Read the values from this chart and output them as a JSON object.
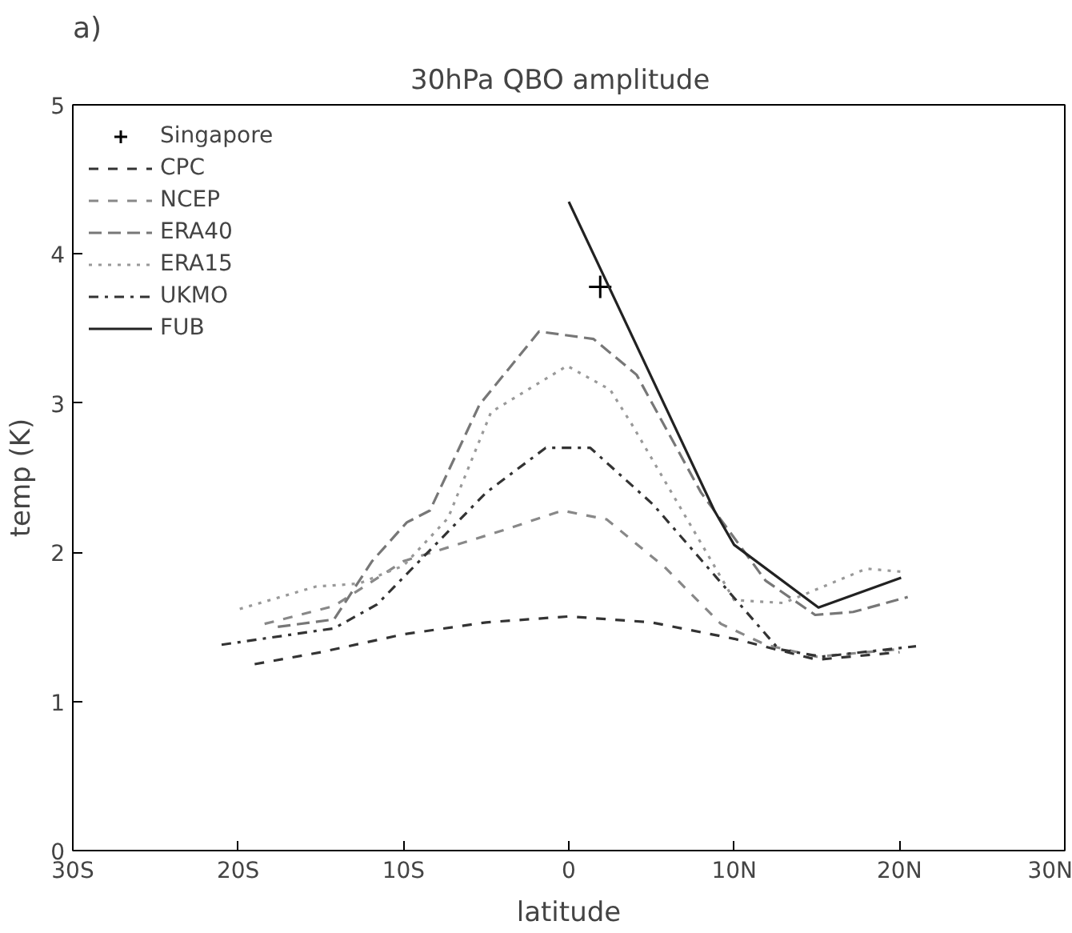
{
  "chart_data": {
    "type": "line",
    "title": "30hPa   QBO amplitude",
    "xlabel": "latitude",
    "ylabel": "temp (K)",
    "annotations": [
      "a)"
    ],
    "xlim": [
      -30,
      30
    ],
    "ylim": [
      0,
      5
    ],
    "xticks": [
      {
        "value": -30,
        "label": "30S"
      },
      {
        "value": -20,
        "label": "20S"
      },
      {
        "value": -10,
        "label": "10S"
      },
      0,
      {
        "value": 10,
        "label": "10N"
      },
      {
        "value": 20,
        "label": "20N"
      },
      {
        "value": 30,
        "label": "30N"
      }
    ],
    "yticks": [
      0,
      1,
      2,
      3,
      4,
      5
    ],
    "grid": false,
    "legend": "top left",
    "series": [
      {
        "name": "Singapore",
        "type": "scatter",
        "marker": "cross",
        "color": "#000000",
        "x": [
          1.9
        ],
        "values": [
          3.78
        ]
      },
      {
        "name": "CPC",
        "color": "#333333",
        "line_style": "dashed",
        "x": [
          -19,
          -15,
          -10,
          -5,
          0,
          5,
          10,
          15,
          20
        ],
        "values": [
          1.25,
          1.33,
          1.45,
          1.53,
          1.57,
          1.53,
          1.42,
          1.28,
          1.33
        ]
      },
      {
        "name": "NCEP",
        "color": "#888888",
        "line_style": "dashed",
        "x": [
          -18.4,
          -14.2,
          -10,
          -3.9,
          -0.4,
          2.3,
          5.8,
          9.2,
          11.9,
          15,
          20
        ],
        "values": [
          1.52,
          1.64,
          1.94,
          2.15,
          2.28,
          2.22,
          1.9,
          1.52,
          1.38,
          1.3,
          1.35
        ]
      },
      {
        "name": "ERA40",
        "color": "#777777",
        "line_style": "longdash",
        "x": [
          -17.6,
          -14.2,
          -11.9,
          -9.8,
          -8.4,
          -5.4,
          -1.8,
          1.5,
          4.1,
          8,
          11.9,
          14.9,
          17.2,
          20.5
        ],
        "values": [
          1.5,
          1.55,
          1.94,
          2.2,
          2.28,
          2.99,
          3.48,
          3.43,
          3.19,
          2.4,
          1.81,
          1.58,
          1.6,
          1.7
        ]
      },
      {
        "name": "ERA15",
        "color": "#999999",
        "line_style": "dotted",
        "x": [
          -19.9,
          -15.3,
          -12.7,
          -10,
          -7.3,
          -4.7,
          -0.1,
          2.5,
          3.8,
          10,
          13,
          18,
          20.1
        ],
        "values": [
          1.62,
          1.77,
          1.79,
          1.91,
          2.23,
          2.94,
          3.25,
          3.09,
          2.86,
          1.68,
          1.66,
          1.89,
          1.87
        ]
      },
      {
        "name": "UKMO",
        "color": "#333333",
        "line_style": "dashdot",
        "x": [
          -21,
          -14.2,
          -11.6,
          -5,
          -1.4,
          1.3,
          5.1,
          8,
          12.7,
          15.3,
          21
        ],
        "values": [
          1.38,
          1.49,
          1.65,
          2.4,
          2.7,
          2.7,
          2.32,
          1.95,
          1.35,
          1.3,
          1.37
        ]
      },
      {
        "name": "FUB",
        "color": "#222222",
        "line_style": "solid",
        "x": [
          0,
          8.8,
          10,
          15.1,
          20.1
        ],
        "values": [
          4.35,
          2.28,
          2.05,
          1.63,
          1.83
        ]
      }
    ]
  }
}
